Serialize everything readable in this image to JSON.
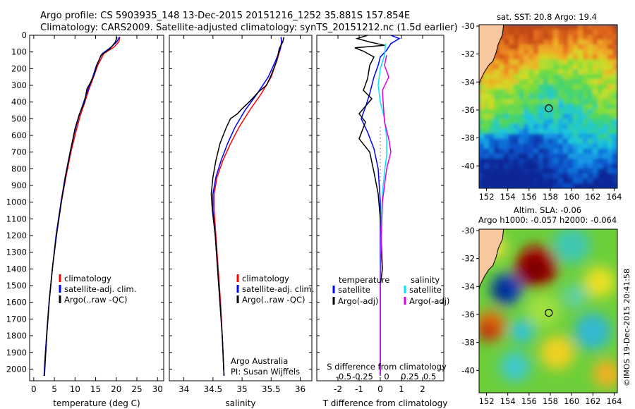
{
  "title": {
    "line1": "Argo profile: CS 5903935_148 13-Dec-2015 20151216_1252 35.881S 157.854E",
    "line2": "Climatology: CARS2009. Satellite-adjusted climatology: synTS_20151212.nc (1.5d earlier)"
  },
  "colors": {
    "climatology": "#ff0000",
    "satellite": "#0000ff",
    "argo": "#000000",
    "sat_salinity": "#00e5ff",
    "argo_salinity": "#e000e0"
  },
  "credits": {
    "org": "Argo Australia",
    "pi": "PI: Susan Wijffels"
  },
  "stamp": "©IMOS 19-Dec-2015 20:41:58",
  "chart_data": [
    {
      "type": "line",
      "name": "temperature-profile",
      "xlabel": "temperature (deg C)",
      "ylabel": "",
      "xlim": [
        -1,
        31.5
      ],
      "ylim": [
        2070,
        0
      ],
      "xticks": [
        0,
        5,
        10,
        15,
        20,
        25,
        30
      ],
      "yticks": [
        0,
        100,
        200,
        300,
        400,
        500,
        600,
        700,
        800,
        900,
        1000,
        1100,
        1200,
        1300,
        1400,
        1500,
        1600,
        1700,
        1800,
        1900,
        2000
      ],
      "legend": [
        "climatology",
        "satellite-adj. clim.",
        "Argo(..raw -QC)"
      ],
      "series": [
        {
          "name": "climatology",
          "color": "#ff0000",
          "points": [
            [
              20.9,
              10
            ],
            [
              20.6,
              40
            ],
            [
              19.5,
              70
            ],
            [
              17,
              110
            ],
            [
              15.5,
              180
            ],
            [
              14.5,
              250
            ],
            [
              13.3,
              330
            ],
            [
              12.4,
              400
            ],
            [
              11.3,
              480
            ],
            [
              10.2,
              580
            ],
            [
              9,
              700
            ],
            [
              7.8,
              850
            ],
            [
              6.7,
              1000
            ],
            [
              5.5,
              1200
            ],
            [
              4.5,
              1400
            ],
            [
              3.7,
              1600
            ],
            [
              3.1,
              1800
            ],
            [
              2.7,
              1950
            ],
            [
              2.5,
              2040
            ]
          ]
        },
        {
          "name": "satellite-adj. clim.",
          "color": "#0000ff",
          "points": [
            [
              20.8,
              10
            ],
            [
              20.1,
              40
            ],
            [
              18.8,
              70
            ],
            [
              16.6,
              110
            ],
            [
              15.2,
              180
            ],
            [
              14.3,
              250
            ],
            [
              13.1,
              330
            ],
            [
              12.1,
              400
            ],
            [
              11,
              480
            ],
            [
              9.9,
              580
            ],
            [
              8.8,
              700
            ],
            [
              7.6,
              850
            ],
            [
              6.6,
              1000
            ],
            [
              5.4,
              1200
            ],
            [
              4.5,
              1400
            ],
            [
              3.7,
              1600
            ],
            [
              3.1,
              1800
            ],
            [
              2.7,
              1950
            ],
            [
              2.5,
              2040
            ]
          ]
        },
        {
          "name": "Argo(..raw -QC)",
          "color": "#000000",
          "points": [
            [
              20.2,
              10
            ],
            [
              19.8,
              40
            ],
            [
              18.5,
              80
            ],
            [
              16.3,
              120
            ],
            [
              15.3,
              180
            ],
            [
              14.6,
              240
            ],
            [
              13.6,
              290
            ],
            [
              12.9,
              320
            ],
            [
              12.3,
              400
            ],
            [
              11.1,
              470
            ],
            [
              10,
              560
            ],
            [
              9,
              680
            ],
            [
              7.9,
              820
            ],
            [
              6.8,
              980
            ],
            [
              5.6,
              1180
            ],
            [
              4.6,
              1380
            ],
            [
              3.8,
              1580
            ],
            [
              3.2,
              1780
            ],
            [
              2.8,
              1950
            ],
            [
              2.6,
              2040
            ]
          ]
        }
      ]
    },
    {
      "type": "line",
      "name": "salinity-profile",
      "xlabel": "salinity",
      "ylabel": "",
      "xlim": [
        33.75,
        36.2
      ],
      "ylim": [
        2070,
        0
      ],
      "xticks": [
        34,
        34.5,
        35,
        35.5,
        36
      ],
      "legend": [
        "climatology",
        "satellite-adj. clim.",
        "Argo(..raw -QC)"
      ],
      "series": [
        {
          "name": "climatology",
          "color": "#ff0000",
          "points": [
            [
              35.67,
              10
            ],
            [
              35.68,
              40
            ],
            [
              35.66,
              80
            ],
            [
              35.6,
              150
            ],
            [
              35.5,
              250
            ],
            [
              35.33,
              350
            ],
            [
              35.13,
              450
            ],
            [
              34.95,
              550
            ],
            [
              34.8,
              650
            ],
            [
              34.67,
              750
            ],
            [
              34.57,
              850
            ],
            [
              34.52,
              950
            ],
            [
              34.52,
              1050
            ],
            [
              34.55,
              1200
            ],
            [
              34.59,
              1400
            ],
            [
              34.63,
              1600
            ],
            [
              34.66,
              1800
            ],
            [
              34.69,
              2040
            ]
          ]
        },
        {
          "name": "satellite-adj. clim.",
          "color": "#0000ff",
          "points": [
            [
              35.67,
              10
            ],
            [
              35.68,
              40
            ],
            [
              35.66,
              80
            ],
            [
              35.58,
              150
            ],
            [
              35.45,
              250
            ],
            [
              35.26,
              350
            ],
            [
              35.05,
              450
            ],
            [
              34.88,
              550
            ],
            [
              34.75,
              650
            ],
            [
              34.64,
              750
            ],
            [
              34.55,
              850
            ],
            [
              34.5,
              950
            ],
            [
              34.5,
              1050
            ],
            [
              34.54,
              1200
            ],
            [
              34.58,
              1400
            ],
            [
              34.62,
              1600
            ],
            [
              34.66,
              1800
            ],
            [
              34.69,
              2040
            ]
          ]
        },
        {
          "name": "Argo(..raw -QC)",
          "color": "#000000",
          "points": [
            [
              35.72,
              10
            ],
            [
              35.7,
              40
            ],
            [
              35.64,
              80
            ],
            [
              35.6,
              150
            ],
            [
              35.5,
              240
            ],
            [
              35.42,
              300
            ],
            [
              35.28,
              340
            ],
            [
              35.15,
              390
            ],
            [
              35,
              440
            ],
            [
              34.92,
              470
            ],
            [
              34.8,
              500
            ],
            [
              34.72,
              560
            ],
            [
              34.62,
              650
            ],
            [
              34.55,
              750
            ],
            [
              34.5,
              850
            ],
            [
              34.47,
              950
            ],
            [
              34.49,
              1050
            ],
            [
              34.54,
              1200
            ],
            [
              34.58,
              1400
            ],
            [
              34.62,
              1600
            ],
            [
              34.66,
              1800
            ],
            [
              34.69,
              2040
            ]
          ]
        }
      ]
    },
    {
      "type": "line",
      "name": "difference-profile",
      "xlabel": "T difference from climatology",
      "ylabel": "",
      "xlim": [
        -3,
        3
      ],
      "ylim": [
        2070,
        0
      ],
      "xticks": [
        -2,
        -1,
        0,
        1,
        2
      ],
      "secondary_axis_label": "S difference from climatology",
      "secondary_ticks": [
        "-0.5",
        "-0.25",
        "0",
        "0.25",
        "0.5"
      ],
      "legend_headers": [
        "temperature",
        "salinity"
      ],
      "legend": [
        "satellite",
        "Argo(-adj)",
        "satellite",
        "Argo(-adj)"
      ],
      "series": [
        {
          "name": "temperature satellite",
          "color": "#0000ff",
          "points": [
            [
              0.5,
              0
            ],
            [
              0.9,
              20
            ],
            [
              0.5,
              50
            ],
            [
              0.3,
              90
            ],
            [
              0,
              130
            ],
            [
              -0.1,
              180
            ],
            [
              -0.3,
              250
            ],
            [
              -0.5,
              350
            ],
            [
              -0.7,
              430
            ],
            [
              -0.9,
              500
            ],
            [
              -0.6,
              580
            ],
            [
              -0.3,
              680
            ],
            [
              -0.1,
              800
            ],
            [
              0,
              1000
            ],
            [
              0,
              1500
            ],
            [
              0,
              2040
            ]
          ]
        },
        {
          "name": "temperature Argo(-adj)",
          "color": "#000000",
          "points": [
            [
              -0.6,
              0
            ],
            [
              -1.1,
              20
            ],
            [
              -0.5,
              40
            ],
            [
              0.2,
              60
            ],
            [
              -1.2,
              75
            ],
            [
              -0.8,
              95
            ],
            [
              -0.3,
              130
            ],
            [
              -0.5,
              180
            ],
            [
              -0.6,
              260
            ],
            [
              -0.8,
              330
            ],
            [
              -0.4,
              380
            ],
            [
              -1,
              470
            ],
            [
              -0.7,
              520
            ],
            [
              -1,
              620
            ],
            [
              -0.5,
              700
            ],
            [
              -0.3,
              820
            ],
            [
              -0.1,
              950
            ],
            [
              0,
              1100
            ],
            [
              0.1,
              1400
            ],
            [
              0,
              1500
            ],
            [
              0,
              2040
            ]
          ]
        },
        {
          "name": "salinity satellite",
          "color": "#00e5ff",
          "points": [
            [
              0.25,
              50
            ],
            [
              0.2,
              120
            ],
            [
              0,
              200
            ],
            [
              -0.1,
              300
            ],
            [
              0,
              400
            ],
            [
              0.2,
              500
            ],
            [
              0.3,
              620
            ],
            [
              0.3,
              720
            ],
            [
              0.2,
              820
            ],
            [
              0.1,
              950
            ],
            [
              0.05,
              1100
            ],
            [
              0,
              1500
            ],
            [
              0,
              2040
            ]
          ]
        },
        {
          "name": "salinity Argo(-adj)",
          "color": "#e000e0",
          "points": [
            [
              0.3,
              120
            ],
            [
              0.2,
              180
            ],
            [
              0.4,
              250
            ],
            [
              0.1,
              330
            ],
            [
              0.15,
              430
            ],
            [
              0.2,
              520
            ],
            [
              0.4,
              620
            ],
            [
              0.5,
              700
            ],
            [
              0.3,
              800
            ],
            [
              0.2,
              900
            ],
            [
              0.1,
              1000
            ],
            [
              0.05,
              1200
            ],
            [
              0,
              1500
            ],
            [
              0,
              2040
            ]
          ]
        }
      ]
    },
    {
      "type": "heatmap",
      "name": "sst-map",
      "title": "sat. SST: 20.8  Argo: 19.4",
      "xticks": [
        152,
        154,
        156,
        158,
        160,
        162,
        164
      ],
      "yticks": [
        -30,
        -32,
        -34,
        -36,
        -38,
        -40
      ],
      "xlim": [
        151.3,
        164.3
      ],
      "ylim": [
        -41.6,
        -29.9
      ],
      "float_location": [
        157.85,
        -35.88
      ]
    },
    {
      "type": "heatmap",
      "name": "sla-map",
      "title": "Altim. SLA: -0.06",
      "subtitle": "Argo h1000: -0.057 h2000: -0.064",
      "xticks": [
        152,
        154,
        156,
        158,
        160,
        162,
        164
      ],
      "yticks": [
        -30,
        -32,
        -34,
        -36,
        -38,
        -40
      ],
      "xlim": [
        151.3,
        164.3
      ],
      "ylim": [
        -41.6,
        -29.9
      ],
      "float_location": [
        157.85,
        -35.88
      ]
    }
  ]
}
